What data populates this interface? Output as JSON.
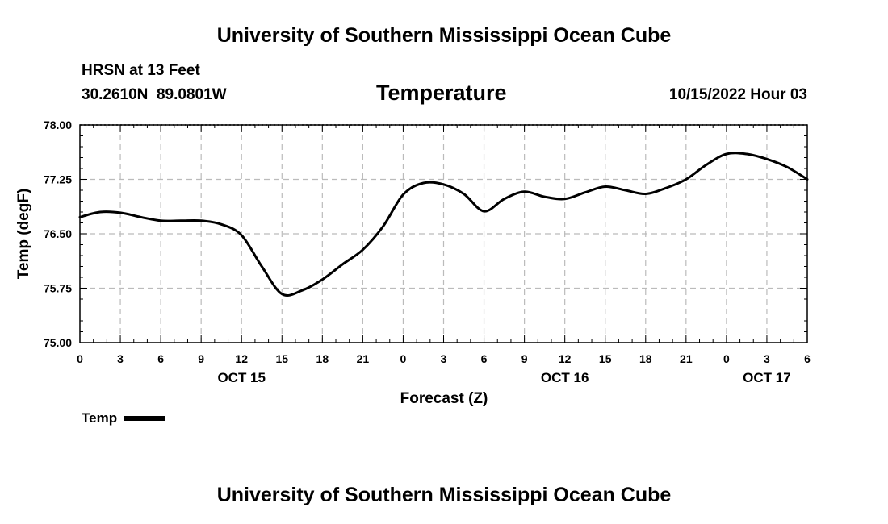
{
  "header": {
    "title": "University of Southern Mississippi Ocean Cube",
    "station": "HRSN at 13 Feet",
    "coords": "30.2610N  89.0801W",
    "variable": "Temperature",
    "datetime": "10/15/2022 Hour 03"
  },
  "footer": {
    "title": "University of Southern Mississippi Ocean Cube"
  },
  "legend": {
    "label": "Temp"
  },
  "colors": {
    "line": "#000000",
    "grid": "#bbbbbb"
  },
  "chart_data": {
    "type": "line",
    "title": "Temperature",
    "xlabel": "Forecast (Z)",
    "ylabel": "Temp (degF)",
    "xlim": [
      0,
      54
    ],
    "ylim": [
      75.0,
      78.0
    ],
    "yticks": [
      75.0,
      75.75,
      76.5,
      77.25,
      78.0
    ],
    "ytick_labels": [
      "75.00",
      "75.75",
      "76.50",
      "77.25",
      "78.00"
    ],
    "xticks": [
      0,
      3,
      6,
      9,
      12,
      15,
      18,
      21,
      24,
      27,
      30,
      33,
      36,
      39,
      42,
      45,
      48,
      51,
      54
    ],
    "xtick_labels": [
      "0",
      "3",
      "6",
      "9",
      "12",
      "15",
      "18",
      "21",
      "0",
      "3",
      "6",
      "9",
      "12",
      "15",
      "18",
      "21",
      "0",
      "3",
      "6"
    ],
    "date_labels": [
      {
        "x": 12,
        "label": "OCT 15"
      },
      {
        "x": 36,
        "label": "OCT 16"
      },
      {
        "x": 51,
        "label": "OCT 17"
      }
    ],
    "grid": true,
    "series": [
      {
        "name": "Temp",
        "x": [
          0,
          1.5,
          3,
          4.5,
          6,
          7.5,
          9,
          10.5,
          12,
          13.5,
          15,
          16.5,
          18,
          19.5,
          21,
          22.5,
          24,
          25.5,
          27,
          28.5,
          30,
          31.5,
          33,
          34.5,
          36,
          37.5,
          39,
          40.5,
          42,
          43.5,
          45,
          46.5,
          48,
          49.5,
          51,
          52.5,
          54
        ],
        "values": [
          76.73,
          76.8,
          76.79,
          76.73,
          76.68,
          76.68,
          76.68,
          76.63,
          76.48,
          76.05,
          75.67,
          75.72,
          75.87,
          76.08,
          76.28,
          76.6,
          77.04,
          77.2,
          77.18,
          77.05,
          76.81,
          76.98,
          77.08,
          77.01,
          76.98,
          77.07,
          77.15,
          77.1,
          77.05,
          77.13,
          77.25,
          77.45,
          77.6,
          77.6,
          77.53,
          77.42,
          77.25
        ]
      }
    ]
  }
}
